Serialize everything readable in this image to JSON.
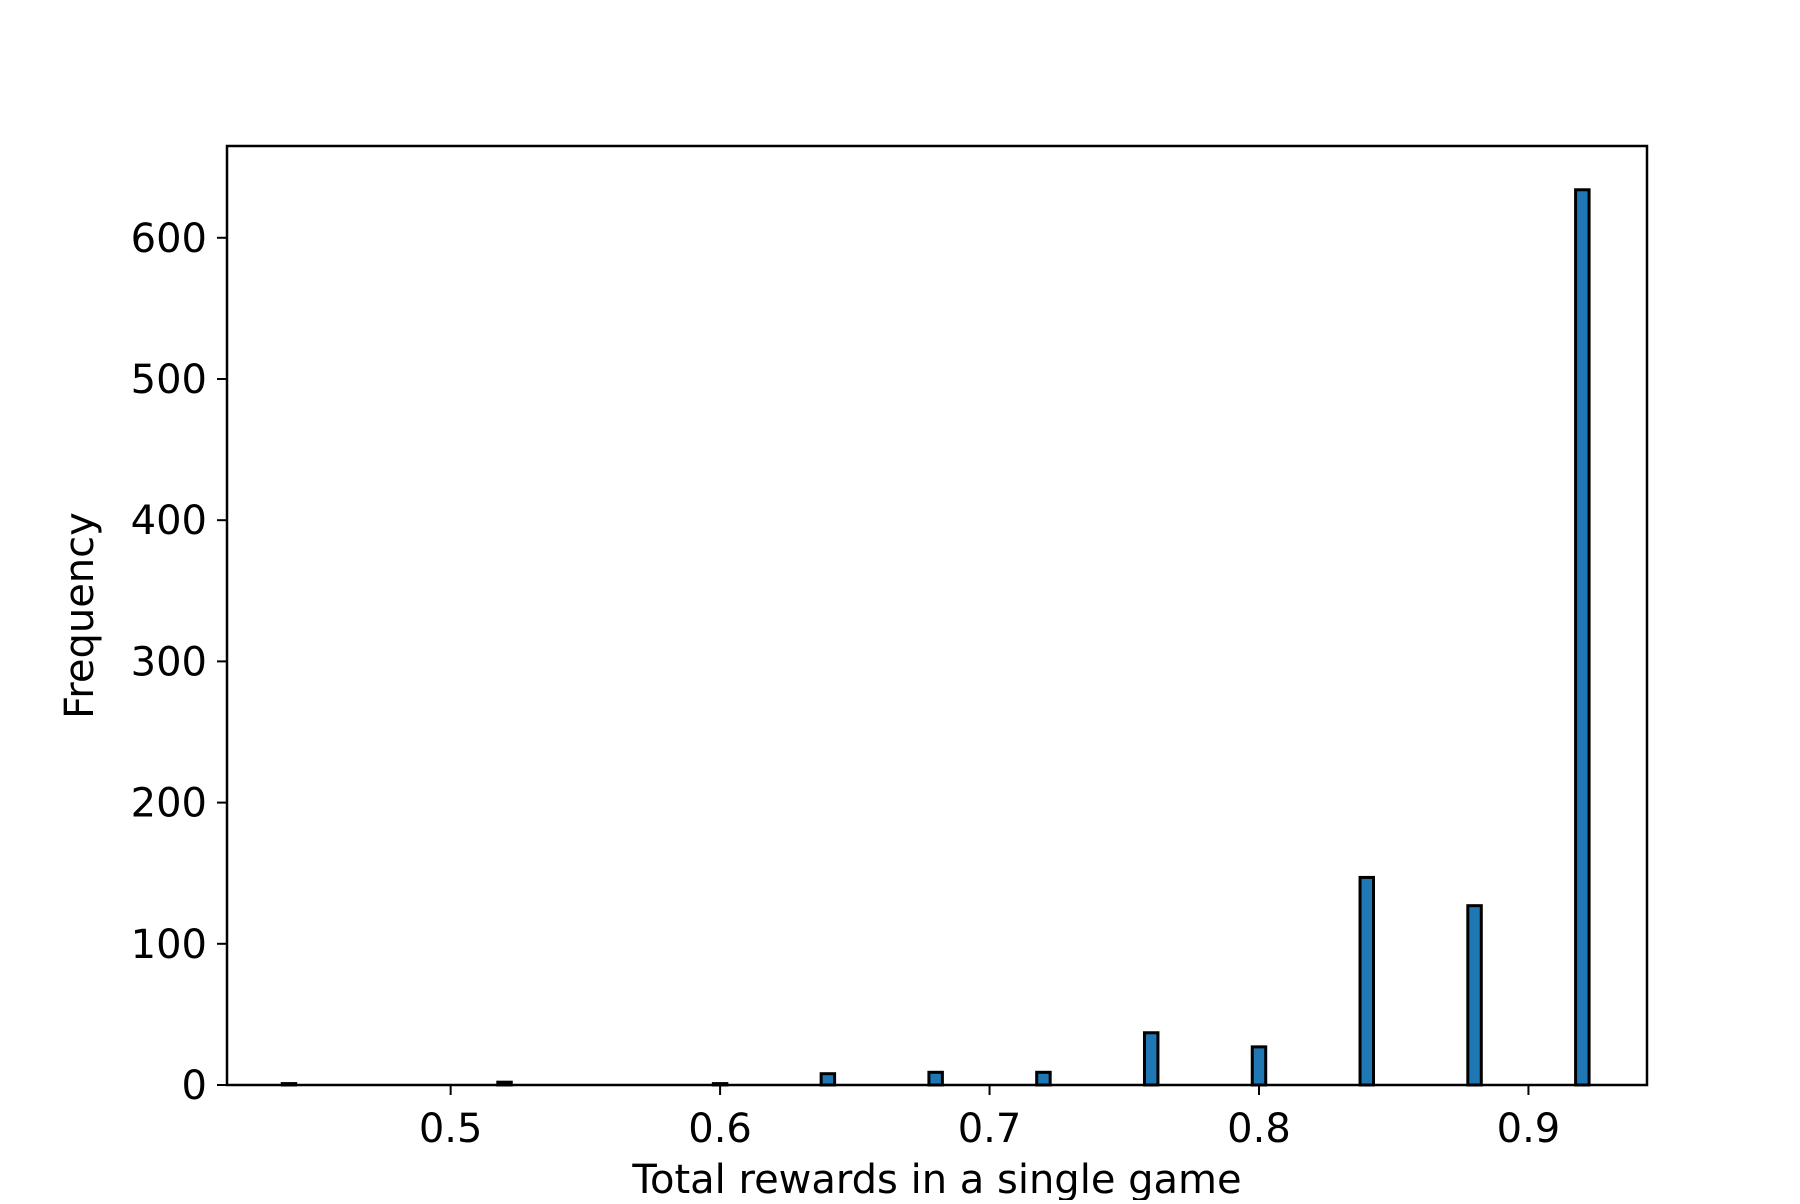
{
  "chart_data": {
    "type": "bar",
    "title": "",
    "xlabel": "Total rewards in a single game",
    "ylabel": "Frequency",
    "xlim": [
      0.417,
      0.944
    ],
    "ylim": [
      0,
      665
    ],
    "xticks": [
      0.5,
      0.6,
      0.7,
      0.8,
      0.9
    ],
    "xtick_labels": [
      "0.5",
      "0.6",
      "0.7",
      "0.8",
      "0.9"
    ],
    "yticks": [
      0,
      100,
      200,
      300,
      400,
      500,
      600
    ],
    "ytick_labels": [
      "0",
      "100",
      "200",
      "300",
      "400",
      "500",
      "600"
    ],
    "bar_width": 0.005,
    "grid": false,
    "legend": "none",
    "colors": {
      "bar_fill": "#1f77b4",
      "bar_edge": "#000000",
      "axes": "#000000",
      "background": "#ffffff"
    },
    "x": [
      0.44,
      0.52,
      0.6,
      0.64,
      0.68,
      0.72,
      0.76,
      0.8,
      0.84,
      0.88,
      0.92
    ],
    "values": [
      1,
      2,
      1,
      8,
      9,
      9,
      37,
      27,
      147,
      127,
      634
    ]
  }
}
